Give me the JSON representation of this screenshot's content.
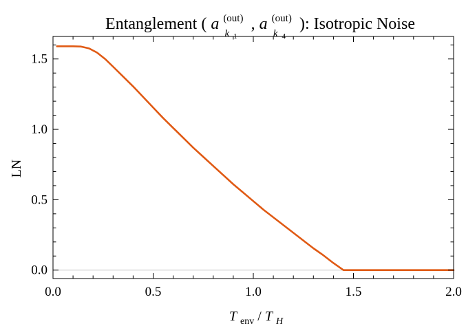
{
  "chart_data": {
    "type": "line",
    "title": {
      "prefix": "Entanglement (",
      "term1": {
        "base": "a",
        "sub": "k",
        "subsub": "1",
        "sup": "(out)"
      },
      "separator": ", ",
      "term2": {
        "base": "a",
        "sub": "k",
        "subsub": "4",
        "sup": "(out)"
      },
      "suffix": "): Isotropic Noise"
    },
    "xlabel": {
      "base1": "T",
      "sub1": "env",
      "slash": "/",
      "base2": "T",
      "sub2": "H"
    },
    "ylabel": "LN",
    "xlim": [
      0.0,
      2.0
    ],
    "ylim": [
      -0.06,
      1.66
    ],
    "x_ticks": [
      0.0,
      0.5,
      1.0,
      1.5,
      2.0
    ],
    "x_tick_labels": [
      "0.0",
      "0.5",
      "1.0",
      "1.5",
      "2.0"
    ],
    "y_ticks": [
      0.0,
      0.5,
      1.0,
      1.5
    ],
    "y_tick_labels": [
      "0.0",
      "0.5",
      "1.0",
      "1.5"
    ],
    "grid": false,
    "series": [
      {
        "color": "#e05a14",
        "x": [
          0.02,
          0.05,
          0.1,
          0.14,
          0.18,
          0.22,
          0.26,
          0.3,
          0.35,
          0.4,
          0.45,
          0.5,
          0.55,
          0.6,
          0.65,
          0.7,
          0.75,
          0.8,
          0.85,
          0.9,
          0.95,
          1.0,
          1.05,
          1.1,
          1.15,
          1.2,
          1.25,
          1.3,
          1.35,
          1.4,
          1.45,
          1.5,
          1.6,
          1.7,
          1.8,
          1.9,
          2.0
        ],
        "y": [
          1.59,
          1.59,
          1.59,
          1.588,
          1.575,
          1.545,
          1.5,
          1.445,
          1.375,
          1.305,
          1.23,
          1.155,
          1.08,
          1.01,
          0.94,
          0.87,
          0.805,
          0.74,
          0.675,
          0.61,
          0.55,
          0.49,
          0.43,
          0.375,
          0.32,
          0.265,
          0.21,
          0.155,
          0.105,
          0.05,
          0.0,
          0.0,
          0.0,
          0.0,
          0.0,
          0.0,
          0.0
        ]
      }
    ]
  }
}
